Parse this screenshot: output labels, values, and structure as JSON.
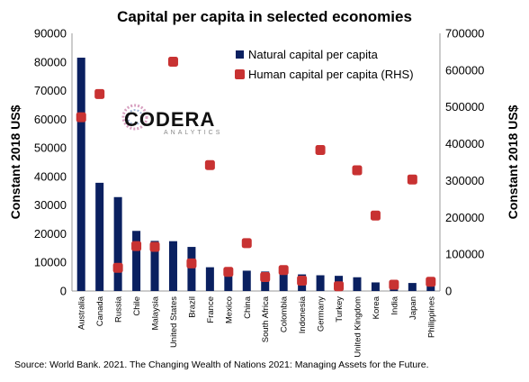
{
  "chart_data": {
    "type": "bar",
    "title": "Capital per capita in selected economies",
    "ylabel": "Constant 2018 US$",
    "ylabel_right": "Constant 2018 US$",
    "ylim": [
      0,
      90000
    ],
    "ylim_right": [
      0,
      700000
    ],
    "yticks": [
      "0",
      "10000",
      "20000",
      "30000",
      "40000",
      "50000",
      "60000",
      "70000",
      "80000",
      "90000"
    ],
    "yticks_right": [
      "0",
      "100000",
      "200000",
      "300000",
      "400000",
      "500000",
      "600000",
      "700000"
    ],
    "grid": false,
    "legend_position": "top-right",
    "categories": [
      "Australia",
      "Canada",
      "Russia",
      "Chile",
      "Malaysia",
      "United States",
      "Brazil",
      "France",
      "Mexico",
      "China",
      "South Africa",
      "Colombia",
      "Indonesia",
      "Germany",
      "Turkey",
      "United Kingdom",
      "Korea",
      "India",
      "Japan",
      "Philippines"
    ],
    "series": [
      {
        "name": "Natural capital per capita",
        "type": "bar",
        "axis": "left",
        "color": "#0a2060",
        "values": [
          81500,
          37800,
          32800,
          21000,
          17500,
          17400,
          15400,
          8300,
          7000,
          7100,
          6800,
          6500,
          5800,
          5500,
          5300,
          4800,
          3000,
          2700,
          2800,
          2200
        ]
      },
      {
        "name": "Human capital per capita (RHS)",
        "type": "scatter",
        "axis": "right",
        "color": "#c83232",
        "values": [
          472000,
          535000,
          63000,
          122000,
          120000,
          623000,
          75000,
          342000,
          52000,
          130000,
          38000,
          57000,
          28000,
          383000,
          13000,
          328000,
          205000,
          17000,
          303000,
          25000
        ]
      }
    ]
  },
  "logo": {
    "main": "CODERA",
    "sub": "ANALYTICS"
  },
  "source": "Source: World Bank. 2021. The Changing Wealth of Nations 2021: Managing Assets for the Future."
}
